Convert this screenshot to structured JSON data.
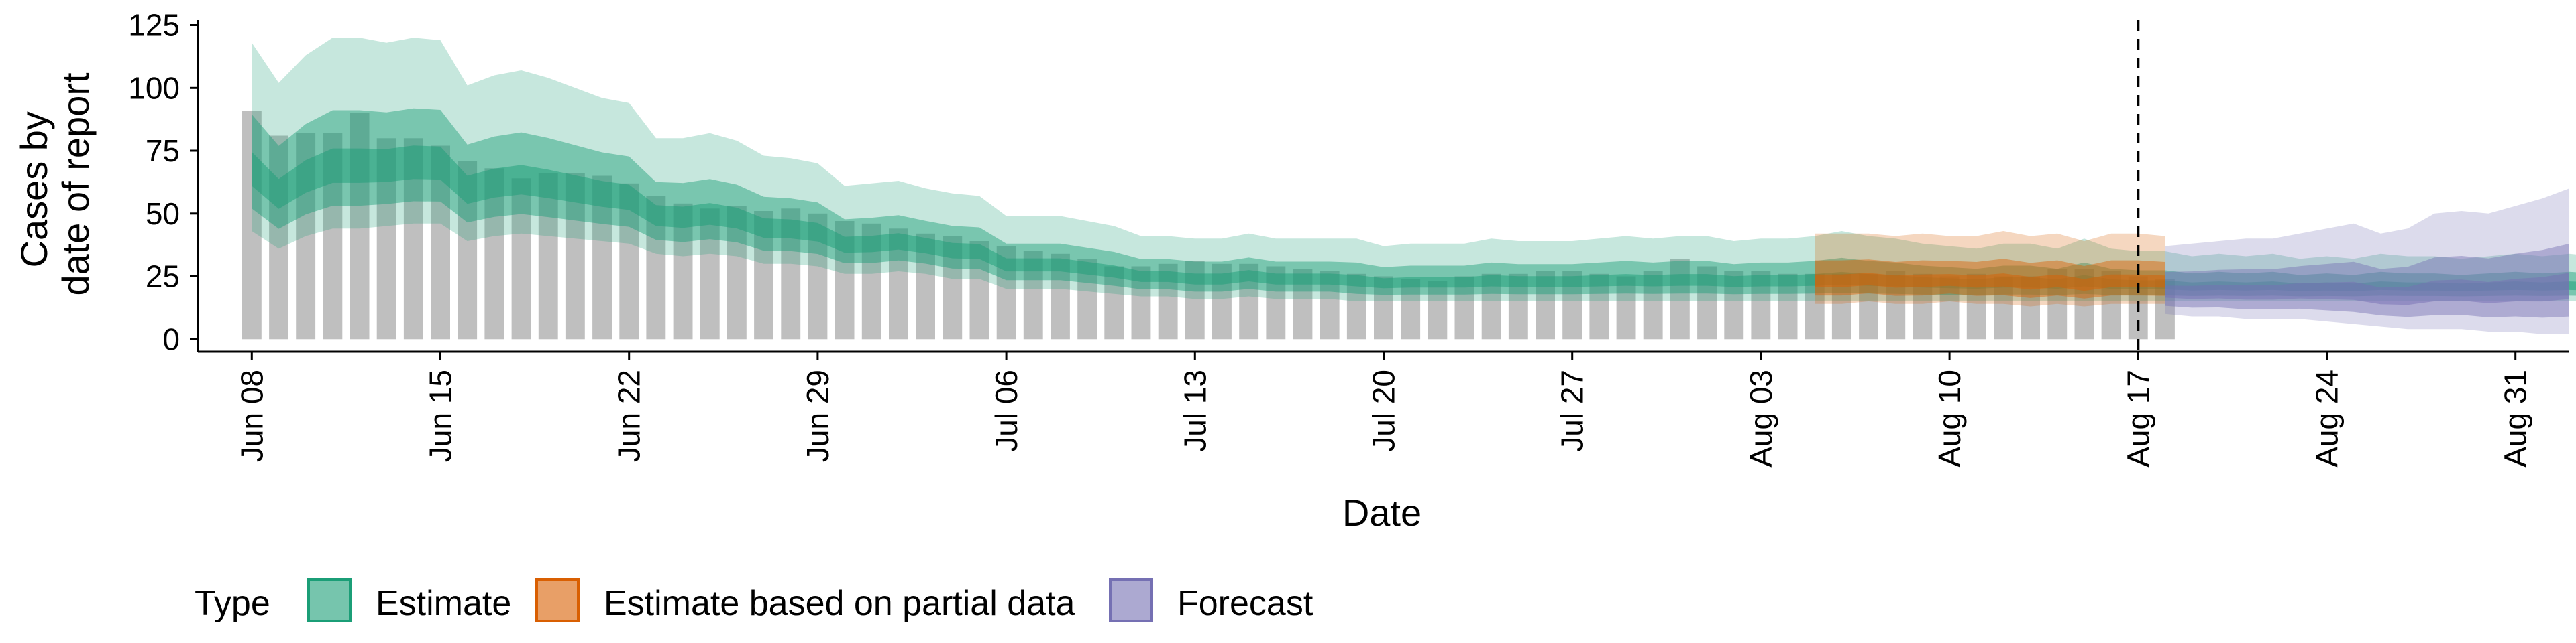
{
  "chart_data": {
    "type": "area",
    "xlabel": "Date",
    "ylabel_lines": [
      "Cases by",
      "date of report"
    ],
    "ylim": [
      -5,
      127
    ],
    "yticks": [
      0,
      25,
      50,
      75,
      100,
      125
    ],
    "xlim": [
      "2020-06-06",
      "2020-09-02"
    ],
    "xticks": [
      {
        "date": "2020-06-08",
        "label": "Jun 08"
      },
      {
        "date": "2020-06-15",
        "label": "Jun 15"
      },
      {
        "date": "2020-06-22",
        "label": "Jun 22"
      },
      {
        "date": "2020-06-29",
        "label": "Jun 29"
      },
      {
        "date": "2020-07-06",
        "label": "Jul 06"
      },
      {
        "date": "2020-07-13",
        "label": "Jul 13"
      },
      {
        "date": "2020-07-20",
        "label": "Jul 20"
      },
      {
        "date": "2020-07-27",
        "label": "Jul 27"
      },
      {
        "date": "2020-08-03",
        "label": "Aug 03"
      },
      {
        "date": "2020-08-10",
        "label": "Aug 10"
      },
      {
        "date": "2020-08-17",
        "label": "Aug 17"
      },
      {
        "date": "2020-08-24",
        "label": "Aug 24"
      },
      {
        "date": "2020-08-31",
        "label": "Aug 31"
      }
    ],
    "vline_date": "2020-08-17",
    "observed": {
      "start_date": "2020-06-08",
      "values": [
        91,
        81,
        82,
        82,
        90,
        80,
        80,
        77,
        71,
        68,
        64,
        66,
        66,
        65,
        62,
        57,
        54,
        52,
        53,
        51,
        52,
        50,
        47,
        46,
        44,
        42,
        41,
        39,
        37,
        35,
        34,
        32,
        29,
        29,
        30,
        31,
        30,
        30,
        29,
        28,
        27,
        26,
        25,
        24,
        23,
        25,
        26,
        26,
        27,
        27,
        26,
        25,
        27,
        32,
        29,
        27,
        27,
        26,
        26,
        26,
        26,
        27,
        26,
        25,
        26,
        25,
        25,
        28,
        28,
        27,
        25,
        24
      ]
    },
    "series": [
      {
        "name": "Estimate",
        "color": "#1b9e77",
        "start_date": "2020-06-08",
        "outer_upper": [
          118,
          102,
          113,
          120,
          120,
          118,
          120,
          119,
          101,
          105,
          107,
          104,
          100,
          96,
          94,
          80,
          80,
          82,
          79,
          73,
          72,
          70,
          61,
          62,
          63,
          60,
          58,
          57,
          49,
          49,
          49,
          47,
          45,
          41,
          41,
          40,
          40,
          42,
          40,
          40,
          40,
          40,
          37,
          38,
          38,
          38,
          40,
          39,
          39,
          39,
          40,
          41,
          40,
          41,
          41,
          39,
          40,
          40,
          41,
          43,
          41,
          40,
          38,
          37,
          36,
          38,
          38,
          36,
          40,
          36,
          35,
          35,
          33,
          34,
          33,
          34,
          32,
          33,
          32,
          34,
          33,
          33,
          32,
          33,
          34,
          33,
          34,
          33,
          32,
          34,
          32,
          28
        ],
        "outer_lower": [
          43,
          36,
          41,
          44,
          44,
          45,
          46,
          46,
          39,
          41,
          42,
          41,
          40,
          39,
          38,
          34,
          33,
          34,
          33,
          30,
          30,
          29,
          26,
          26,
          27,
          26,
          24,
          24,
          20,
          20,
          20,
          19,
          18,
          17,
          17,
          16,
          16,
          17,
          16,
          16,
          16,
          15,
          15,
          15,
          15,
          15,
          15,
          15,
          15,
          15,
          15,
          15,
          15,
          15,
          15,
          15,
          15,
          15,
          15,
          15,
          15,
          15,
          15,
          15,
          15,
          15,
          15,
          15,
          15,
          15,
          15,
          15,
          15,
          15,
          15,
          15,
          15,
          15,
          15,
          15,
          15,
          15,
          15,
          15,
          15,
          15,
          15,
          15,
          15,
          15,
          15,
          15
        ]
      },
      {
        "name": "Estimate based on partial data",
        "color": "#d95f02",
        "start_date": "2020-08-05",
        "outer_upper": [
          42,
          42,
          42,
          41,
          42,
          41,
          41,
          43,
          41,
          42,
          39,
          42,
          42,
          41
        ],
        "outer_lower": [
          14,
          14,
          15,
          14,
          14,
          15,
          14,
          14,
          13,
          14,
          13,
          14,
          14,
          14
        ]
      },
      {
        "name": "Forecast",
        "color": "#7570b3",
        "start_date": "2020-08-18",
        "outer_upper": [
          37,
          38,
          39,
          40,
          40,
          42,
          44,
          46,
          42,
          44,
          50,
          51,
          50,
          53,
          56,
          60
        ],
        "outer_lower": [
          10,
          9,
          9,
          8,
          8,
          8,
          7,
          6,
          5,
          4,
          4,
          4,
          3,
          3,
          2,
          2
        ]
      }
    ],
    "legend": {
      "title": "Type",
      "position": "bottom",
      "items": [
        {
          "label": "Estimate",
          "color": "#1b9e77"
        },
        {
          "label": "Estimate based on partial data",
          "color": "#d95f02"
        },
        {
          "label": "Forecast",
          "color": "#7570b3"
        }
      ]
    }
  }
}
